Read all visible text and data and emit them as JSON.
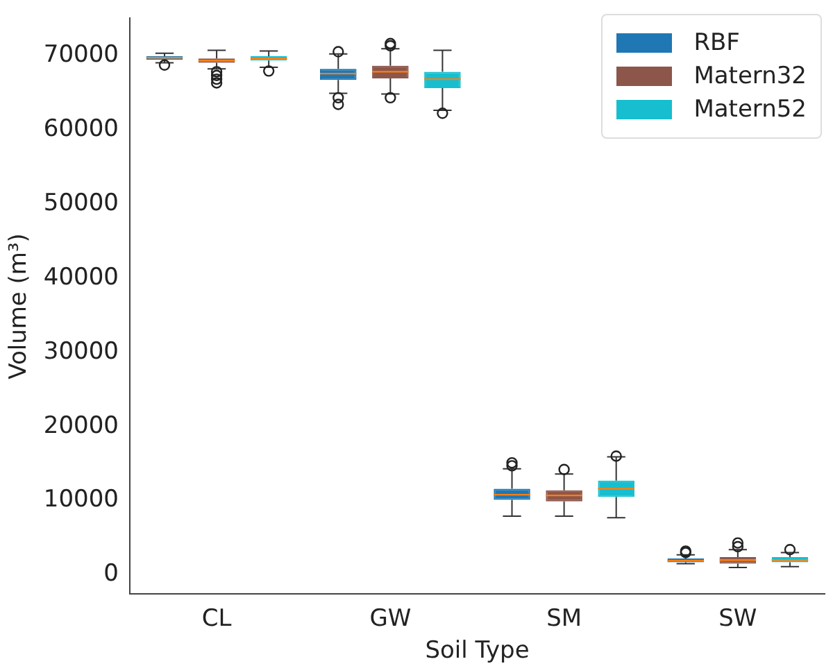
{
  "chart_data": {
    "type": "box",
    "xlabel": "Soil Type",
    "ylabel": "Volume (m³)",
    "categories": [
      "CL",
      "GW",
      "SM",
      "SW"
    ],
    "ylim": [
      -2600,
      75000
    ],
    "yticks": [
      0,
      10000,
      20000,
      30000,
      40000,
      50000,
      60000,
      70000
    ],
    "grid": false,
    "legend": "top right",
    "series": [
      {
        "name": "RBF",
        "color": "#1f77b4",
        "boxes": [
          {
            "low": 69000,
            "q1": 69400,
            "median": 69700,
            "q3": 69900,
            "high": 70300,
            "outliers": [
              68700
            ]
          },
          {
            "low": 64900,
            "q1": 66700,
            "median": 67550,
            "q3": 68200,
            "high": 70200,
            "outliers": [
              70500,
              64300,
              63400
            ]
          },
          {
            "low": 7900,
            "q1": 10100,
            "median": 10800,
            "q3": 11600,
            "high": 14300,
            "outliers": [
              14700,
              15100
            ]
          },
          {
            "low": 1500,
            "q1": 1700,
            "median": 1900,
            "q3": 2200,
            "high": 2700,
            "outliers": [
              3000,
              3200
            ]
          }
        ]
      },
      {
        "name": "Matern32",
        "color": "#8c564b",
        "boxes": [
          {
            "low": 68200,
            "q1": 69000,
            "median": 69300,
            "q3": 69600,
            "high": 70700,
            "outliers": [
              67800,
              67300,
              66800,
              66300
            ]
          },
          {
            "low": 64800,
            "q1": 66900,
            "median": 67800,
            "q3": 68600,
            "high": 70900,
            "outliers": [
              71300,
              71600,
              64300
            ]
          },
          {
            "low": 7900,
            "q1": 9900,
            "median": 10700,
            "q3": 11400,
            "high": 13600,
            "outliers": [
              14200
            ]
          },
          {
            "low": 1000,
            "q1": 1500,
            "median": 2000,
            "q3": 2400,
            "high": 3400,
            "outliers": [
              3800,
              4300
            ]
          }
        ]
      },
      {
        "name": "Matern52",
        "color": "#17becf",
        "boxes": [
          {
            "low": 68400,
            "q1": 69300,
            "median": 69600,
            "q3": 69900,
            "high": 70600,
            "outliers": [
              67900
            ]
          },
          {
            "low": 62600,
            "q1": 65600,
            "median": 66800,
            "q3": 67800,
            "high": 70700,
            "outliers": [
              62200
            ]
          },
          {
            "low": 7700,
            "q1": 10500,
            "median": 11600,
            "q3": 12700,
            "high": 15900,
            "outliers": [
              16000
            ]
          },
          {
            "low": 1100,
            "q1": 1700,
            "median": 2000,
            "q3": 2400,
            "high": 3000,
            "outliers": [
              3400
            ]
          }
        ]
      }
    ]
  }
}
